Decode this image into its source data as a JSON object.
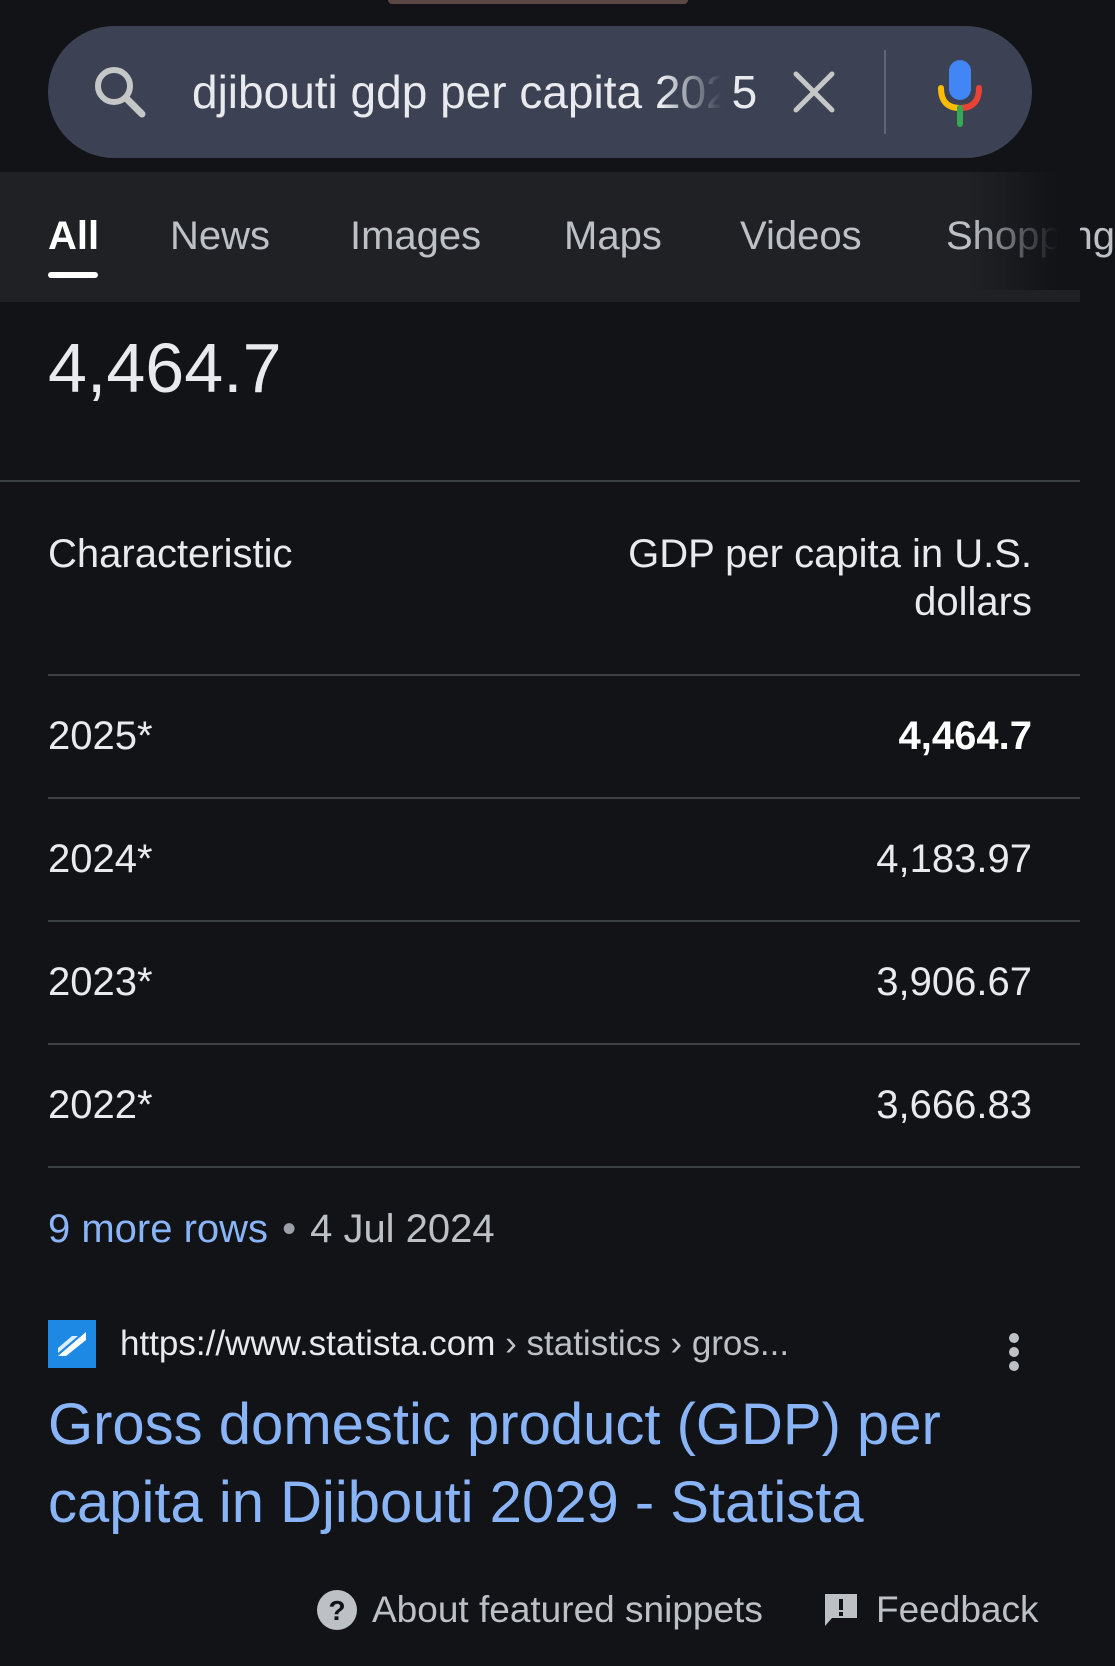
{
  "search": {
    "query": "djibouti gdp per capita 2025",
    "clear_icon": "close-icon",
    "mic_icon": "mic-icon",
    "search_icon": "search-icon"
  },
  "tabs": [
    {
      "label": "All",
      "active": true
    },
    {
      "label": "News"
    },
    {
      "label": "Images"
    },
    {
      "label": "Maps"
    },
    {
      "label": "Videos"
    },
    {
      "label": "Shopping"
    }
  ],
  "snippet": {
    "headline_value": "4,464.7",
    "table": {
      "headers": [
        "Characteristic",
        "GDP per capita in U.S. dollars"
      ],
      "rows": [
        {
          "year": "2025*",
          "value": "4,464.7"
        },
        {
          "year": "2024*",
          "value": "4,183.97"
        },
        {
          "year": "2023*",
          "value": "3,906.67"
        },
        {
          "year": "2022*",
          "value": "3,666.83"
        }
      ]
    },
    "more_rows": "9 more rows",
    "date": "4 Jul 2024"
  },
  "result": {
    "url": "https://www.statista.com",
    "breadcrumb": "› statistics › gros...",
    "title": "Gross domestic product (GDP) per capita in Djibouti 2029 - Statista"
  },
  "footer": {
    "about": "About featured snippets",
    "feedback": "Feedback"
  },
  "colors": {
    "background": "#111317",
    "search_bar": "#3c4253",
    "link": "#8ab4f8"
  }
}
